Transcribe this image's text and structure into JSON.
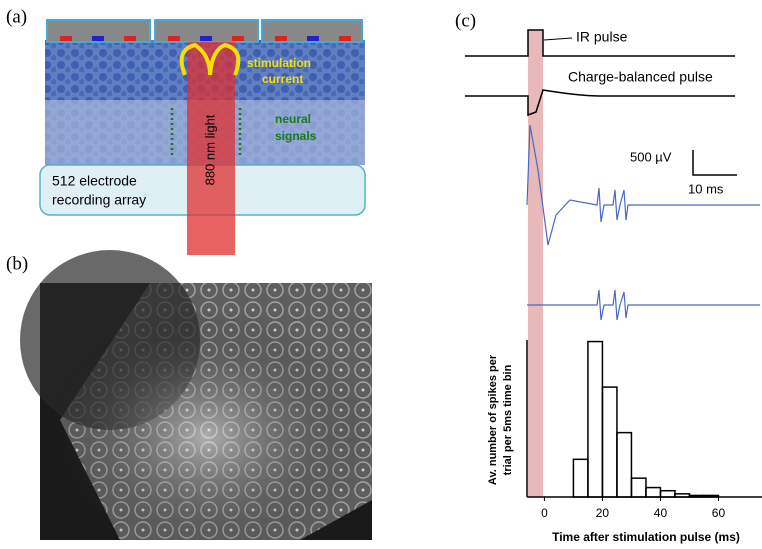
{
  "panels": {
    "a": {
      "label": "(a)",
      "stimulation_current": [
        "stimulation",
        "current"
      ],
      "neural_signals": [
        "neural",
        "signals"
      ],
      "light": "880 nm light",
      "array": [
        "512 electrode",
        "recording array"
      ]
    },
    "b": {
      "label": "(b)"
    },
    "c": {
      "label": "(c)",
      "ir_pulse": "IR pulse",
      "charge_balanced": "Charge-balanced pulse",
      "scale_v": "500 µV",
      "scale_t": "10 ms"
    }
  },
  "chart_data": {
    "type": "histogram",
    "ylabel": [
      "Av. number of spikes per",
      "trial per 5ms time bin"
    ],
    "xlabel": "Time after stimulation pulse (ms)",
    "bins": [
      10,
      15,
      20,
      25,
      30,
      35,
      40,
      45,
      50,
      55,
      60
    ],
    "values": [
      0.24,
      0.99,
      0.7,
      0.41,
      0.12,
      0.06,
      0.04,
      0.02,
      0.01,
      0.01
    ],
    "color": "#000000",
    "xlim": [
      -6,
      75
    ],
    "ylim": [
      0,
      1
    ],
    "xticks": [
      0,
      20,
      40,
      60
    ]
  }
}
